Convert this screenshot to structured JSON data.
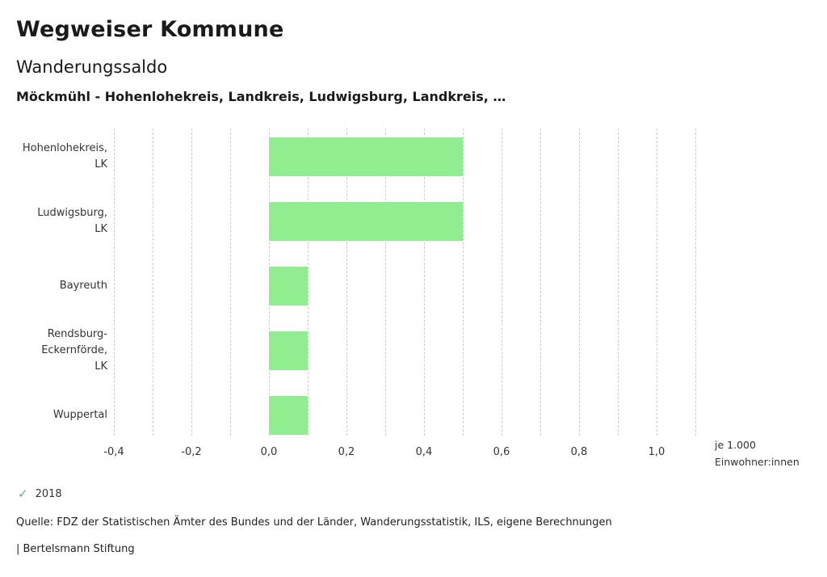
{
  "header": {
    "title": "Wegweiser Kommune",
    "subtitle": "Wanderungssaldo",
    "description": "Möckmühl - Hohenlohekreis, Landkreis, Ludwigsburg, Landkreis, …"
  },
  "chart_data": {
    "type": "bar",
    "orientation": "horizontal",
    "title": "Wanderungssaldo",
    "categories": [
      "Hohenlohekreis, LK",
      "Ludwigsburg, LK",
      "Bayreuth",
      "Rendsburg-Eckernförde, LK",
      "Wuppertal"
    ],
    "category_lines": [
      [
        "Hohenlohekreis,",
        "LK"
      ],
      [
        "Ludwigsburg,",
        "LK"
      ],
      [
        "Bayreuth"
      ],
      [
        "Rendsburg-",
        "Eckernförde,",
        "LK"
      ],
      [
        "Wuppertal"
      ]
    ],
    "series": [
      {
        "name": "2018",
        "values": [
          0.5,
          0.5,
          0.1,
          0.1,
          0.1
        ]
      }
    ],
    "xlim": [
      -0.4,
      1.1
    ],
    "grid_step": 0.1,
    "grid_style": "dashed-vertical",
    "xticks": [
      -0.4,
      -0.2,
      0,
      0.2,
      0.4,
      0.6,
      0.8,
      1.0
    ],
    "xtick_labels": [
      "-0,4",
      "-0,2",
      "0,0",
      "0,2",
      "0,4",
      "0,6",
      "0,8",
      "1,0"
    ],
    "unit_line1": "je 1.000",
    "unit_line2": "Einwohner:innen",
    "bar_color": "#90ee90",
    "legend_position": "bottom-left"
  },
  "legend": {
    "year": "2018",
    "check_icon": "✓",
    "check_color": "#5cb85c"
  },
  "footer": {
    "source": "Quelle: FDZ der Statistischen Ämter des Bundes und der Länder, Wanderungsstatistik, ILS, eigene Berechnungen",
    "branding": "| Bertelsmann Stiftung"
  }
}
